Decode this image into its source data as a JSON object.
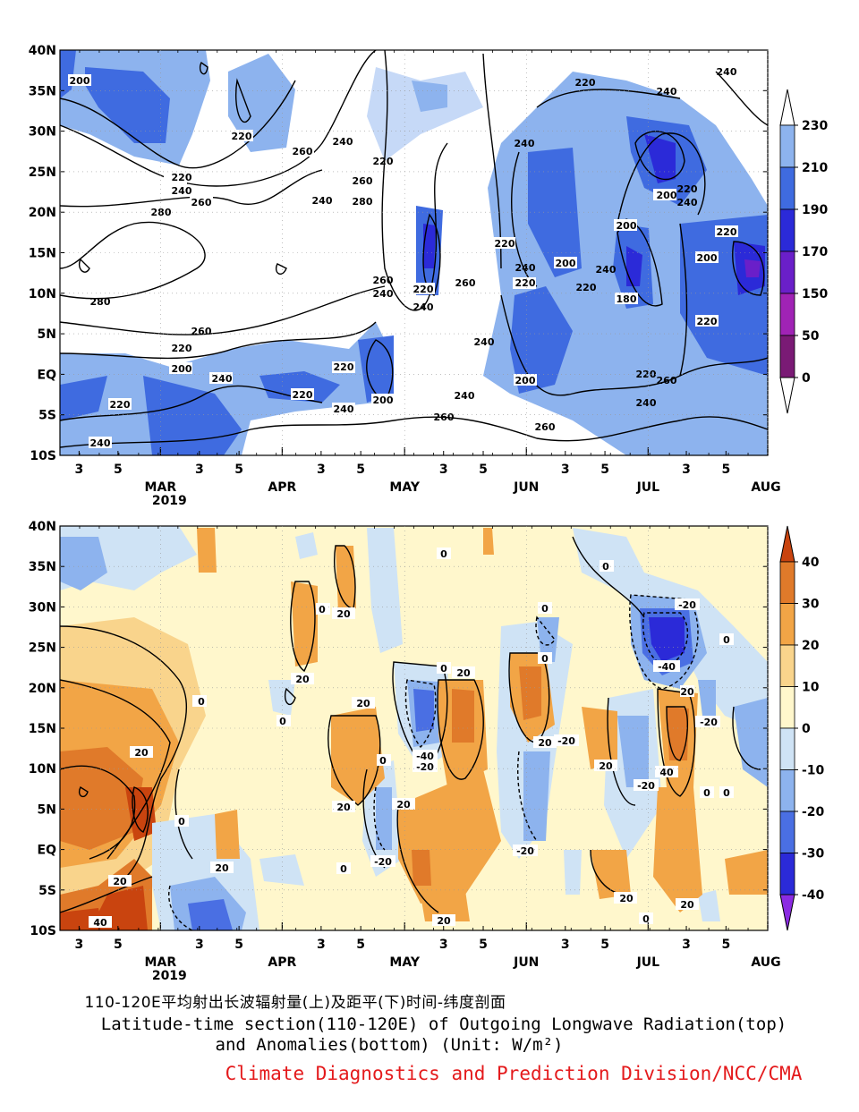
{
  "captions": {
    "chinese": "110-120E平均射出长波辐射量(上)及距平(下)时间-纬度剖面",
    "english_line1": "Latitude-time section(110-120E) of Outgoing Longwave Radiation(top)",
    "english_line2": "and Anomalies(bottom) (Unit: W/m²)",
    "organization": "Climate Diagnostics and Prediction Division/NCC/CMA"
  },
  "colors": {
    "organization_text": "#e41a1c"
  },
  "chart_data": [
    {
      "type": "heatmap",
      "title": "",
      "y_ticks": [
        "40N",
        "35N",
        "30N",
        "25N",
        "20N",
        "15N",
        "10N",
        "5N",
        "EQ",
        "5S",
        "10S"
      ],
      "x_day_ticks": [
        "3",
        "5",
        "3",
        "5",
        "3",
        "5",
        "3",
        "5",
        "3",
        "5",
        "3",
        "5"
      ],
      "x_month_ticks": [
        "MAR",
        "APR",
        "MAY",
        "JUN",
        "JUL",
        "AUG"
      ],
      "x_year_label": "2019",
      "colorbar": {
        "labels": [
          "230",
          "210",
          "190",
          "170",
          "150",
          "50",
          "0"
        ],
        "colors": [
          "#c6d9f7",
          "#8db3ee",
          "#3f6be0",
          "#2b2ad8",
          "#6a1fc9",
          "#a023b5",
          "#7a1a75",
          "#4b0a3e"
        ]
      },
      "contour_labels": [
        "200",
        "240",
        "220",
        "260",
        "280",
        "180",
        "240",
        "220",
        "260",
        "280",
        "200",
        "220",
        "240",
        "260",
        "220",
        "200",
        "220",
        "240",
        "260",
        "200",
        "180"
      ]
    },
    {
      "type": "heatmap",
      "title": "",
      "y_ticks": [
        "40N",
        "35N",
        "30N",
        "25N",
        "20N",
        "15N",
        "10N",
        "5N",
        "EQ",
        "5S",
        "10S"
      ],
      "x_day_ticks": [
        "3",
        "5",
        "3",
        "5",
        "3",
        "5",
        "3",
        "5",
        "3",
        "5",
        "3",
        "5"
      ],
      "x_month_ticks": [
        "MAR",
        "APR",
        "MAY",
        "JUN",
        "JUL",
        "AUG"
      ],
      "x_year_label": "2019",
      "colorbar": {
        "labels": [
          "40",
          "30",
          "20",
          "10",
          "0",
          "-10",
          "-20",
          "-30",
          "-40"
        ],
        "colors": [
          "#c9440f",
          "#e07a2a",
          "#f2a546",
          "#f9d48c",
          "#fff7cc",
          "#cfe3f5",
          "#8db3ee",
          "#4a6fe3",
          "#2b2ad8",
          "#8b2be2"
        ]
      },
      "contour_labels": [
        "20",
        "0",
        "-20",
        "-40",
        "40",
        "20",
        "0",
        "-20",
        "20",
        "0",
        "-20",
        "-40",
        "40",
        "0",
        "20",
        "-20",
        "20",
        "0",
        "-20"
      ]
    }
  ]
}
